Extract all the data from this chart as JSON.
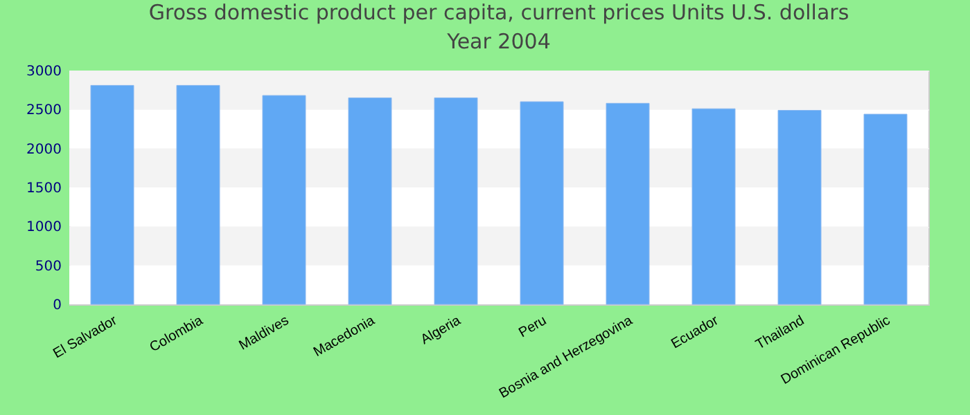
{
  "chart_data": {
    "type": "bar",
    "title": "Gross domestic product per capita, current prices Units U.S. dollars",
    "subtitle": "Year 2004",
    "categories": [
      "El Salvador",
      "Colombia",
      "Maldives",
      "Macedonia",
      "Algeria",
      "Peru",
      "Bosnia and Herzegovina",
      "Ecuador",
      "Thailand",
      "Dominican Republic"
    ],
    "values": [
      2810,
      2810,
      2680,
      2650,
      2650,
      2600,
      2580,
      2510,
      2490,
      2440
    ],
    "color": "#60a8f4",
    "ylim": [
      0,
      3000
    ],
    "yticks": [
      0,
      500,
      1000,
      1500,
      2000,
      2500,
      3000
    ],
    "grid": "y"
  }
}
